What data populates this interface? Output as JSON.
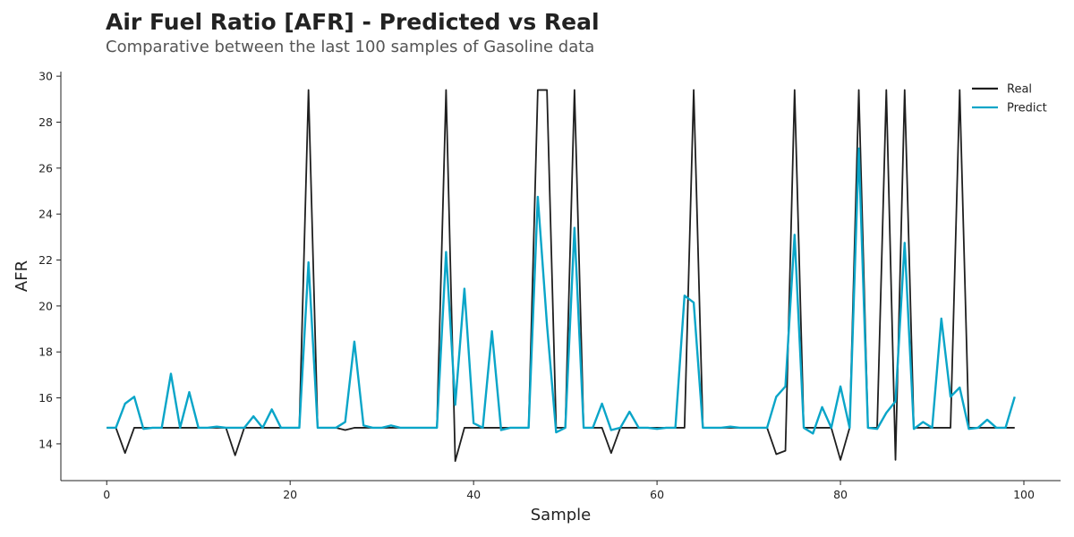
{
  "header": {
    "title": "Air Fuel Ratio [AFR] - Predicted vs Real",
    "subtitle": "Comparative between the last 100 samples of Gasoline data"
  },
  "chart_data": {
    "type": "line",
    "title": "Air Fuel Ratio [AFR] - Predicted vs Real",
    "subtitle": "Comparative between the last 100 samples of Gasoline data",
    "xlabel": "Sample",
    "ylabel": "AFR",
    "xlim": [
      -5,
      104
    ],
    "ylim": [
      12.4,
      30.2
    ],
    "xticks": [
      0,
      20,
      40,
      60,
      80,
      100
    ],
    "yticks": [
      14,
      16,
      18,
      20,
      22,
      24,
      26,
      28,
      30
    ],
    "grid": false,
    "legend_position": "top-right",
    "x": [
      0,
      1,
      2,
      3,
      4,
      5,
      6,
      7,
      8,
      9,
      10,
      11,
      12,
      13,
      14,
      15,
      16,
      17,
      18,
      19,
      20,
      21,
      22,
      23,
      24,
      25,
      26,
      27,
      28,
      29,
      30,
      31,
      32,
      33,
      34,
      35,
      36,
      37,
      38,
      39,
      40,
      41,
      42,
      43,
      44,
      45,
      46,
      47,
      48,
      49,
      50,
      51,
      52,
      53,
      54,
      55,
      56,
      57,
      58,
      59,
      60,
      61,
      62,
      63,
      64,
      65,
      66,
      67,
      68,
      69,
      70,
      71,
      72,
      73,
      74,
      75,
      76,
      77,
      78,
      79,
      80,
      81,
      82,
      83,
      84,
      85,
      86,
      87,
      88,
      89,
      90,
      91,
      92,
      93,
      94,
      95,
      96,
      97,
      98,
      99
    ],
    "series": [
      {
        "name": "Real",
        "color": "#1f1f1f",
        "values": [
          14.7,
          14.7,
          13.6,
          14.7,
          14.7,
          14.7,
          14.7,
          14.7,
          14.7,
          14.7,
          14.7,
          14.7,
          14.7,
          14.7,
          13.5,
          14.7,
          14.7,
          14.7,
          14.7,
          14.7,
          14.7,
          14.7,
          29.4,
          14.7,
          14.7,
          14.7,
          14.6,
          14.7,
          14.7,
          14.7,
          14.7,
          14.7,
          14.7,
          14.7,
          14.7,
          14.7,
          14.7,
          29.4,
          13.25,
          14.7,
          14.7,
          14.7,
          14.7,
          14.7,
          14.7,
          14.7,
          14.7,
          29.4,
          29.4,
          14.7,
          14.7,
          29.4,
          14.7,
          14.7,
          14.7,
          13.6,
          14.7,
          14.7,
          14.7,
          14.7,
          14.7,
          14.7,
          14.7,
          14.7,
          29.4,
          14.7,
          14.7,
          14.7,
          14.7,
          14.7,
          14.7,
          14.7,
          14.7,
          13.55,
          13.7,
          29.4,
          14.7,
          14.7,
          14.7,
          14.7,
          13.3,
          14.7,
          29.4,
          14.7,
          14.7,
          29.4,
          13.3,
          29.4,
          14.7,
          14.7,
          14.7,
          14.7,
          14.7,
          29.4,
          14.7,
          14.7,
          14.7,
          14.7,
          14.7,
          14.7
        ]
      },
      {
        "name": "Predict",
        "color": "#0aa5c8",
        "values": [
          14.7,
          14.7,
          15.75,
          16.05,
          14.65,
          14.7,
          14.7,
          17.05,
          14.7,
          16.25,
          14.7,
          14.7,
          14.75,
          14.7,
          14.7,
          14.7,
          15.2,
          14.7,
          15.5,
          14.7,
          14.7,
          14.7,
          21.9,
          14.7,
          14.7,
          14.7,
          14.95,
          18.45,
          14.8,
          14.7,
          14.7,
          14.8,
          14.7,
          14.7,
          14.7,
          14.7,
          14.7,
          22.35,
          15.7,
          20.75,
          14.9,
          14.7,
          18.9,
          14.6,
          14.7,
          14.7,
          14.7,
          24.75,
          19.2,
          14.5,
          14.7,
          23.4,
          14.7,
          14.7,
          15.75,
          14.6,
          14.7,
          15.4,
          14.7,
          14.7,
          14.65,
          14.7,
          14.7,
          20.45,
          20.15,
          14.7,
          14.7,
          14.7,
          14.75,
          14.7,
          14.7,
          14.7,
          14.7,
          16.05,
          16.5,
          23.1,
          14.7,
          14.45,
          15.6,
          14.7,
          16.5,
          14.7,
          26.85,
          14.7,
          14.65,
          15.35,
          15.85,
          22.75,
          14.65,
          14.95,
          14.7,
          19.45,
          16.05,
          16.45,
          14.65,
          14.7,
          15.05,
          14.7,
          14.7,
          16.05
        ]
      }
    ]
  }
}
